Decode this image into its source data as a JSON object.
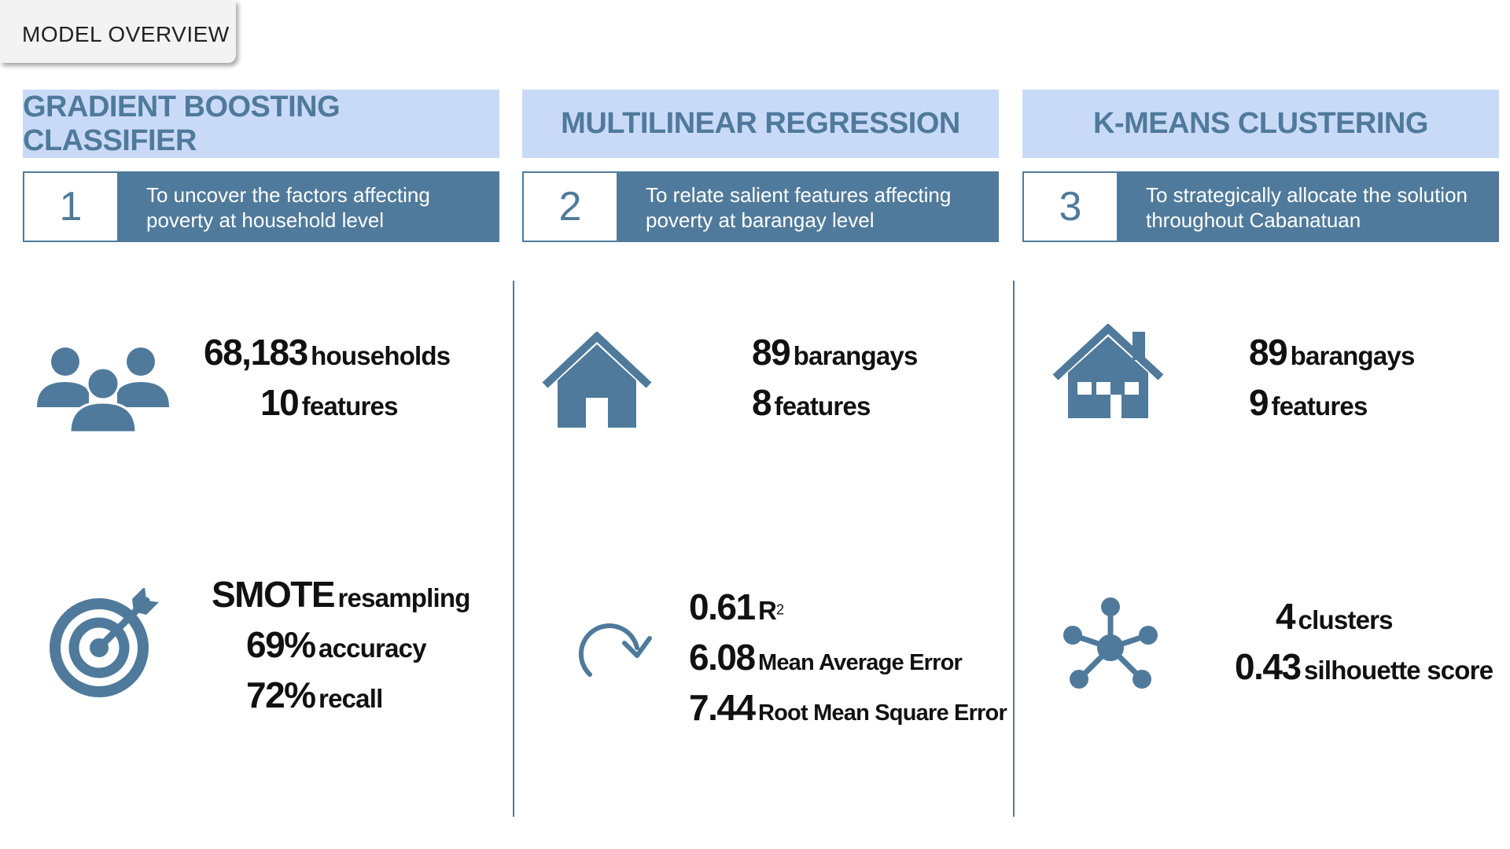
{
  "tab": {
    "label": "MODEL OVERVIEW"
  },
  "columns": [
    {
      "title": "GRADIENT BOOSTING CLASSIFIER",
      "number": "1",
      "objective": "To uncover the factors affecting poverty at household level",
      "stats_top": [
        {
          "value": "68,183",
          "label": "households"
        },
        {
          "value": "10",
          "label": "features"
        }
      ],
      "stats_bottom": [
        {
          "value": "SMOTE",
          "label": "resampling"
        },
        {
          "value": "69%",
          "label": "accuracy"
        },
        {
          "value": "72%",
          "label": "recall"
        }
      ],
      "icons": [
        "people-group-icon",
        "target-icon"
      ]
    },
    {
      "title": "MULTILINEAR REGRESSION",
      "number": "2",
      "objective": "To relate salient features affecting poverty at barangay level",
      "stats_top": [
        {
          "value": "89",
          "label": "barangays"
        },
        {
          "value": "8",
          "label": "features"
        }
      ],
      "stats_bottom": [
        {
          "value": "0.61",
          "label": "R",
          "sup": "2"
        },
        {
          "value": "6.08",
          "label": "Mean Average Error"
        },
        {
          "value": "7.44",
          "label": "Root Mean Square Error"
        }
      ],
      "icons": [
        "house-icon",
        "redo-arrow-icon"
      ]
    },
    {
      "title": "K-MEANS CLUSTERING",
      "number": "3",
      "objective": "To strategically allocate the solution throughout Cabanatuan",
      "stats_top": [
        {
          "value": "89",
          "label": "barangays"
        },
        {
          "value": "9",
          "label": "features"
        }
      ],
      "stats_bottom": [
        {
          "value": "4",
          "label": "clusters"
        },
        {
          "value": "0.43",
          "label": "silhouette score"
        }
      ],
      "icons": [
        "house-with-chimney-icon",
        "cluster-network-icon"
      ]
    }
  ],
  "colors": {
    "accent": "#4f7a9b",
    "header_bg": "#c9daf8"
  }
}
